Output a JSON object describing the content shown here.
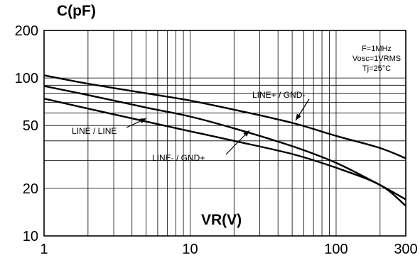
{
  "chart_data": {
    "type": "line",
    "title": "",
    "ylabel": "C(pF)",
    "xlabel": "VR(V)",
    "x_scale": "log",
    "y_scale": "log",
    "xlim": [
      1,
      300
    ],
    "ylim": [
      10,
      200
    ],
    "grid": true,
    "x_ticks": [
      1,
      10,
      100,
      300
    ],
    "y_ticks": [
      10,
      20,
      50,
      100,
      200
    ],
    "x_tick_labels": [
      "1",
      "10",
      "100",
      "300"
    ],
    "y_tick_labels": [
      "10",
      "20",
      "50",
      "100",
      "200"
    ],
    "conditions": [
      "F=1MHz",
      "Vosc=1VRMS",
      "Tj=25°C"
    ],
    "series": [
      {
        "name": "LINE+ / GND-",
        "x": [
          1,
          2,
          5,
          10,
          20,
          50,
          100,
          200,
          300
        ],
        "y": [
          104,
          92,
          80,
          72,
          63,
          52,
          43,
          36,
          31
        ]
      },
      {
        "name": "LINE / LINE",
        "x": [
          1,
          2,
          5,
          10,
          20,
          50,
          100,
          200,
          300
        ],
        "y": [
          89,
          78,
          65,
          57,
          48,
          37,
          29,
          21,
          17
        ]
      },
      {
        "name": "LINE-  / GND+",
        "x": [
          1,
          2,
          5,
          10,
          20,
          50,
          100,
          200,
          300
        ],
        "y": [
          74,
          64,
          53,
          46,
          40,
          33,
          27,
          21,
          15.5
        ]
      }
    ]
  }
}
